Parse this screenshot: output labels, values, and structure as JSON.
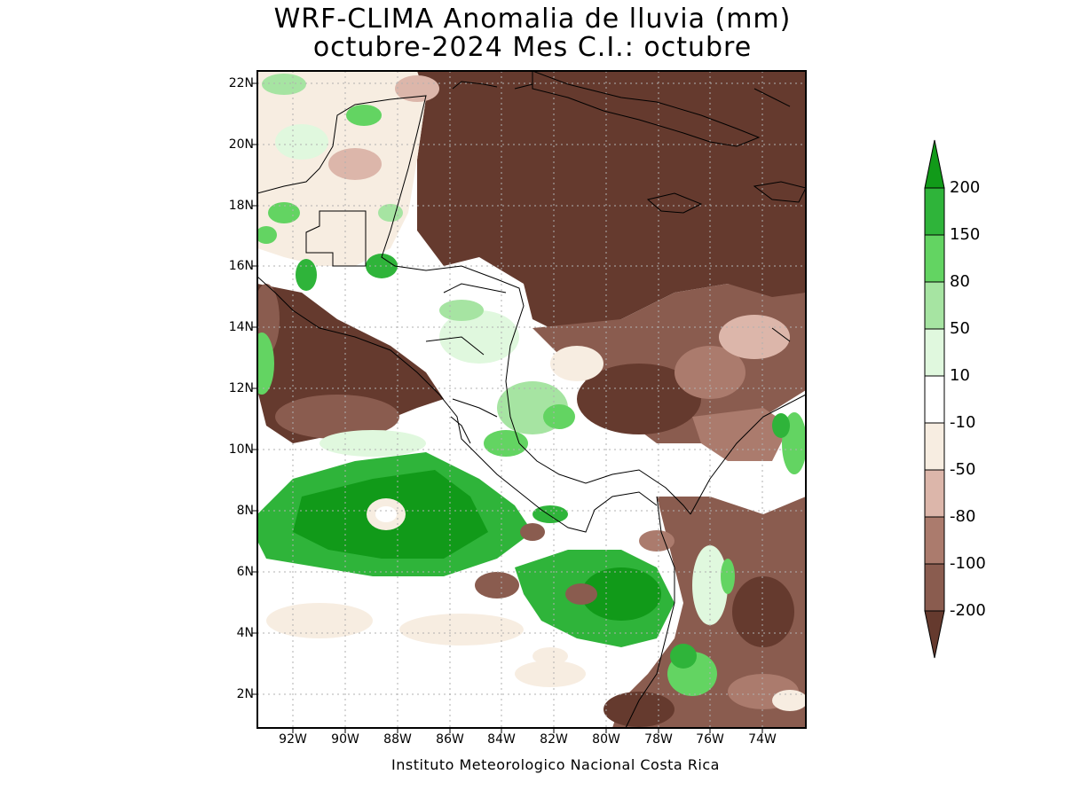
{
  "title_line1": "WRF-CLIMA Anomalia de lluvia (mm)",
  "title_line2": "octubre-2024 Mes C.I.: octubre",
  "credit": "Instituto Meteorologico Nacional Costa Rica",
  "y_ticks": [
    "22N",
    "20N",
    "18N",
    "16N",
    "14N",
    "12N",
    "10N",
    "8N",
    "6N",
    "4N",
    "2N"
  ],
  "x_ticks": [
    "92W",
    "90W",
    "88W",
    "86W",
    "84W",
    "82W",
    "80W",
    "78W",
    "76W",
    "74W"
  ],
  "colorbar": {
    "labels": [
      "200",
      "150",
      "80",
      "50",
      "10",
      "-10",
      "-50",
      "-80",
      "-100",
      "-200"
    ],
    "colors": [
      "#119a19",
      "#2fb43a",
      "#63d462",
      "#a6e4a2",
      "#e0f8de",
      "#ffffff",
      "#f7ede1",
      "#dcb6aa",
      "#ab7b6d",
      "#8a5c4f",
      "#653a2e"
    ]
  },
  "map_colors": {
    "land_ocean_background": "#f7ede1",
    "strong_dry": "#653a2e",
    "dry": "#8a5c4f",
    "moderate_dry": "#ab7b6d",
    "light_dry": "#dcb6aa",
    "neutral": "#ffffff",
    "light_wet": "#e0f8de",
    "moderate_wet": "#a6e4a2",
    "wet": "#63d462",
    "strong_wet": "#119a19"
  }
}
